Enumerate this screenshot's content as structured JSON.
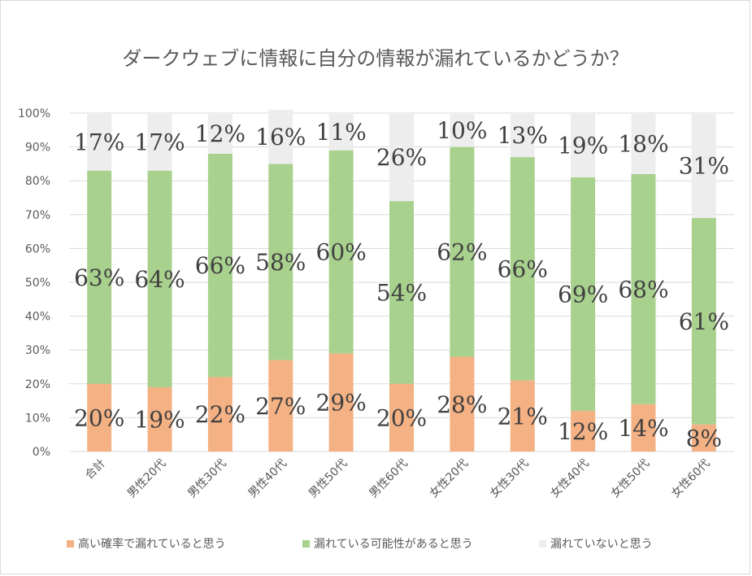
{
  "chart_data": {
    "type": "bar",
    "stacked": true,
    "title": "ダークウェブに情報に自分の情報が漏れているかどうか？",
    "categories": [
      "合計",
      "男性20代",
      "男性30代",
      "男性40代",
      "男性50代",
      "男性60代",
      "女性20代",
      "女性30代",
      "女性40代",
      "女性50代",
      "女性60代"
    ],
    "series": [
      {
        "name": "高い確率で漏れていると思う",
        "color": "#f4b183",
        "values": [
          20,
          19,
          22,
          27,
          29,
          20,
          28,
          21,
          12,
          14,
          8
        ]
      },
      {
        "name": "漏れている可能性があると思う",
        "color": "#a9d18e",
        "values": [
          63,
          64,
          66,
          58,
          60,
          54,
          62,
          66,
          69,
          68,
          61
        ]
      },
      {
        "name": "漏れていないと思う",
        "color": "#ededed",
        "values": [
          17,
          17,
          12,
          16,
          11,
          26,
          10,
          13,
          19,
          18,
          31
        ]
      }
    ],
    "data_labels": [
      [
        "20%",
        "19%",
        "22%",
        "27%",
        "29%",
        "20%",
        "28%",
        "21%",
        "12%",
        "14%",
        "8%"
      ],
      [
        "63%",
        "64%",
        "66%",
        "58%",
        "60%",
        "54%",
        "62%",
        "66%",
        "69%",
        "68%",
        "61%"
      ],
      [
        "17%",
        "17%",
        "12%",
        "16%",
        "11%",
        "26%",
        "10%",
        "13%",
        "19%",
        "18%",
        "31%"
      ]
    ],
    "y_ticks": [
      "0%",
      "10%",
      "20%",
      "30%",
      "40%",
      "50%",
      "60%",
      "70%",
      "80%",
      "90%",
      "100%"
    ],
    "ylim": [
      0,
      100
    ],
    "grid": true,
    "legend_position": "bottom"
  }
}
